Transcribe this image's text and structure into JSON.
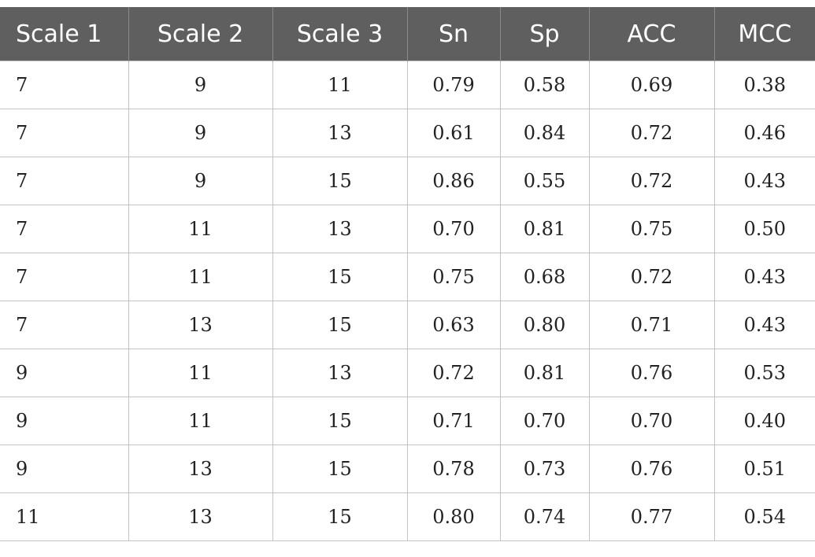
{
  "table": {
    "headers": [
      "Scale 1",
      "Scale 2",
      "Scale 3",
      "Sn",
      "Sp",
      "ACC",
      "MCC"
    ],
    "rows": [
      [
        "7",
        "9",
        "11",
        "0.79",
        "0.58",
        "0.69",
        "0.38"
      ],
      [
        "7",
        "9",
        "13",
        "0.61",
        "0.84",
        "0.72",
        "0.46"
      ],
      [
        "7",
        "9",
        "15",
        "0.86",
        "0.55",
        "0.72",
        "0.43"
      ],
      [
        "7",
        "11",
        "13",
        "0.70",
        "0.81",
        "0.75",
        "0.50"
      ],
      [
        "7",
        "11",
        "15",
        "0.75",
        "0.68",
        "0.72",
        "0.43"
      ],
      [
        "7",
        "13",
        "15",
        "0.63",
        "0.80",
        "0.71",
        "0.43"
      ],
      [
        "9",
        "11",
        "13",
        "0.72",
        "0.81",
        "0.76",
        "0.53"
      ],
      [
        "9",
        "11",
        "15",
        "0.71",
        "0.70",
        "0.70",
        "0.40"
      ],
      [
        "9",
        "13",
        "15",
        "0.78",
        "0.73",
        "0.76",
        "0.51"
      ],
      [
        "11",
        "13",
        "15",
        "0.80",
        "0.74",
        "0.77",
        "0.54"
      ]
    ]
  },
  "colors": {
    "header_bg": "#5f5f5f",
    "header_text": "#ffffff",
    "grid_line": "#c4c4c4",
    "cell_text": "#222222"
  }
}
